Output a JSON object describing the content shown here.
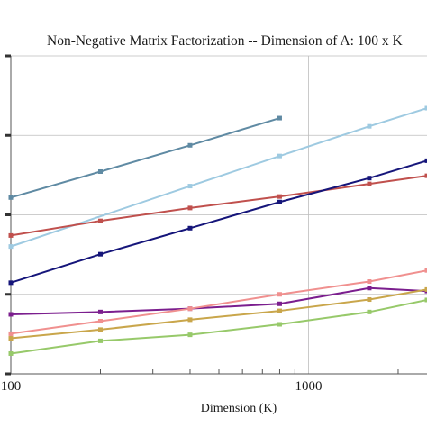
{
  "chart_data": {
    "type": "line",
    "title": "Non-Negative Matrix Factorization -- Dimension of A: 100 x K",
    "xlabel": "Dimension (K)",
    "ylabel": "",
    "x_scale": "log",
    "y_scale": "log",
    "xlim": [
      100,
      2500
    ],
    "ylim": [
      0.01,
      100
    ],
    "x_ticks": [
      100,
      1000
    ],
    "x_tick_labels": [
      "100",
      "1000"
    ],
    "grid": true,
    "legend": "none",
    "series": [
      {
        "color": "#5f8aa3",
        "x": [
          100,
          200,
          400,
          800
        ],
        "y": [
          1.65,
          3.5,
          7.5,
          16.5
        ]
      },
      {
        "color": "#9ecae1",
        "x": [
          100,
          400,
          800,
          1600,
          2500
        ],
        "y": [
          0.4,
          2.3,
          5.5,
          13,
          22
        ]
      },
      {
        "color": "#c0504d",
        "x": [
          100,
          200,
          400,
          800,
          1600,
          2500
        ],
        "y": [
          0.55,
          0.84,
          1.22,
          1.7,
          2.45,
          3.1
        ]
      },
      {
        "color": "#15157a",
        "x": [
          100,
          200,
          400,
          800,
          1600,
          2500
        ],
        "y": [
          0.14,
          0.32,
          0.68,
          1.45,
          2.9,
          4.8
        ]
      },
      {
        "color": "#7b1e8e",
        "x": [
          100,
          200,
          400,
          800,
          1600,
          2500
        ],
        "y": [
          0.056,
          0.06,
          0.066,
          0.076,
          0.12,
          0.11
        ]
      },
      {
        "color": "#f0908f",
        "x": [
          100,
          200,
          400,
          800,
          1600,
          2500
        ],
        "y": [
          0.032,
          0.046,
          0.066,
          0.1,
          0.145,
          0.2
        ]
      },
      {
        "color": "#c9a64b",
        "x": [
          100,
          200,
          400,
          800,
          1600,
          2500
        ],
        "y": [
          0.028,
          0.036,
          0.048,
          0.062,
          0.086,
          0.115
        ]
      },
      {
        "color": "#97c96a",
        "x": [
          100,
          200,
          400,
          800,
          1600,
          2500
        ],
        "y": [
          0.018,
          0.026,
          0.031,
          0.042,
          0.06,
          0.085
        ]
      }
    ]
  }
}
